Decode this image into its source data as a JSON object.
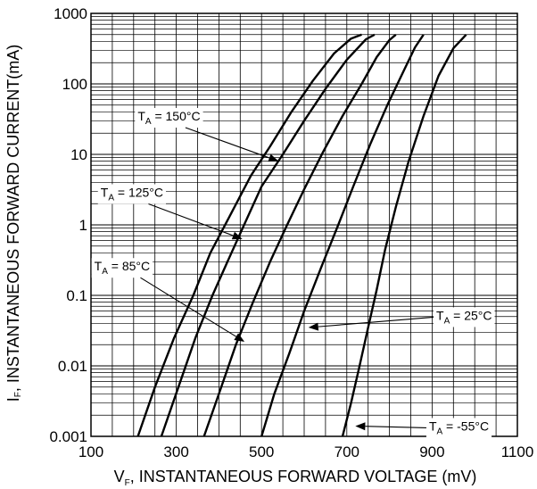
{
  "chart_data": {
    "type": "line",
    "xlabel": {
      "main": "V",
      "sub": "F",
      "rest": ", INSTANTANEOUS FORWARD VOLTAGE (mV)"
    },
    "ylabel": {
      "main": "I",
      "sub": "F",
      "rest": ", INSTANTANEOUS FORWARD CURRENT(mA)"
    },
    "xlim": [
      100,
      1100
    ],
    "ylim": [
      0.001,
      1000
    ],
    "y_scale": "log",
    "grid": true,
    "x_ticks": [
      100,
      300,
      500,
      700,
      900,
      1100
    ],
    "x_tick_labels": [
      "100",
      "300",
      "500",
      "700",
      "900",
      "1100"
    ],
    "y_ticks": [
      0.001,
      0.01,
      0.1,
      1,
      10,
      100,
      1000
    ],
    "y_tick_labels": [
      "0.001",
      "0.01",
      "0.1",
      "1",
      "10",
      "100",
      "1000"
    ],
    "series": [
      {
        "name": "T_A = 150°C",
        "label": {
          "main": "T",
          "sub": "A",
          "rest": " = 150°C"
        },
        "x": [
          210,
          250,
          295,
          340,
          380,
          430,
          475,
          520,
          570,
          620,
          670,
          710,
          735
        ],
        "y": [
          0.001,
          0.005,
          0.025,
          0.1,
          0.4,
          1.5,
          5,
          13,
          40,
          110,
          270,
          440,
          500
        ]
      },
      {
        "name": "T_A = 125°C",
        "label": {
          "main": "T",
          "sub": "A",
          "rest": " = 125°C"
        },
        "x": [
          265,
          305,
          345,
          385,
          420,
          465,
          500,
          550,
          600,
          650,
          700,
          745,
          765
        ],
        "y": [
          0.001,
          0.005,
          0.025,
          0.1,
          0.3,
          1.2,
          3.5,
          10,
          30,
          85,
          220,
          430,
          500
        ]
      },
      {
        "name": "T_A = 85°C",
        "label": {
          "main": "T",
          "sub": "A",
          "rest": " = 85°C"
        },
        "x": [
          365,
          400,
          440,
          480,
          520,
          560,
          600,
          645,
          690,
          735,
          770,
          800,
          815
        ],
        "y": [
          0.001,
          0.004,
          0.02,
          0.08,
          0.3,
          1,
          3.2,
          11,
          35,
          100,
          240,
          420,
          500
        ]
      },
      {
        "name": "T_A = 25°C",
        "label": {
          "main": "T",
          "sub": "A",
          "rest": " = 25°C"
        },
        "x": [
          500,
          530,
          565,
          600,
          640,
          680,
          715,
          755,
          795,
          835,
          860,
          880
        ],
        "y": [
          0.001,
          0.004,
          0.015,
          0.06,
          0.25,
          1,
          3.5,
          14,
          50,
          160,
          330,
          500
        ]
      },
      {
        "name": "T_A = -55°C",
        "label": {
          "main": "T",
          "sub": "A",
          "rest": " = -55°C"
        },
        "x": [
          690,
          710,
          730,
          750,
          770,
          790,
          815,
          845,
          880,
          915,
          950,
          980
        ],
        "y": [
          0.001,
          0.003,
          0.01,
          0.035,
          0.12,
          0.45,
          1.8,
          8,
          35,
          130,
          320,
          500
        ]
      }
    ],
    "annotations": [
      {
        "series": 0,
        "text_at": [
          283,
          35
        ],
        "arrow_to": [
          540,
          8
        ]
      },
      {
        "series": 1,
        "text_at": [
          196,
          2.9
        ],
        "arrow_to": [
          455,
          0.63
        ]
      },
      {
        "series": 2,
        "text_at": [
          173,
          0.26
        ],
        "arrow_to": [
          460,
          0.022
        ]
      },
      {
        "series": 3,
        "text_at": [
          975,
          0.052
        ],
        "arrow_to": [
          610,
          0.035
        ]
      },
      {
        "series": 4,
        "text_at": [
          963,
          0.0014
        ],
        "arrow_to": [
          720,
          0.0014
        ]
      }
    ]
  }
}
